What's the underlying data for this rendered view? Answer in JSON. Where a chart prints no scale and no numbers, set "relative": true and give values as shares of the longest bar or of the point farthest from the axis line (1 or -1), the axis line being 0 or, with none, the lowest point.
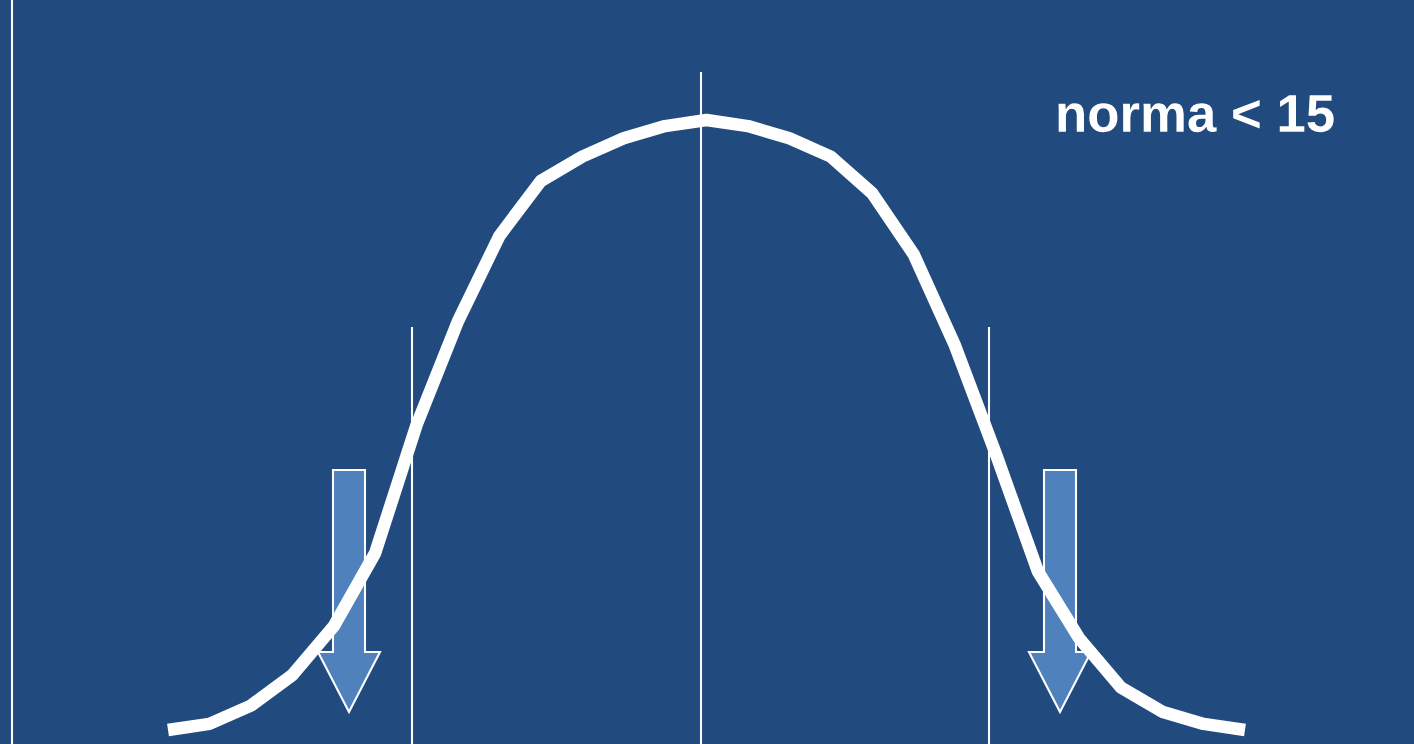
{
  "chart_data": {
    "type": "line",
    "relative": true,
    "legend": false,
    "marker": "none",
    "line_style": "solid",
    "categories": [
      null,
      null,
      null,
      null,
      null,
      null,
      null,
      null,
      null,
      null,
      null,
      null,
      null,
      null,
      null,
      null,
      null,
      null,
      null,
      null,
      null,
      null,
      null,
      null,
      null,
      null,
      null
    ],
    "series": [
      {
        "color": "#ffffff",
        "values": [
          0,
          0.01,
          0.04,
          0.09,
          0.17,
          0.29,
          0.5,
          0.67,
          0.81,
          0.9,
          0.94,
          0.97,
          0.99,
          1,
          0.99,
          0.97,
          0.94,
          0.88,
          0.78,
          0.63,
          0.45,
          0.26,
          0.15,
          0.07,
          0.03,
          0.01,
          0
        ]
      }
    ],
    "annotations": [
      "norma < 15"
    ]
  }
}
